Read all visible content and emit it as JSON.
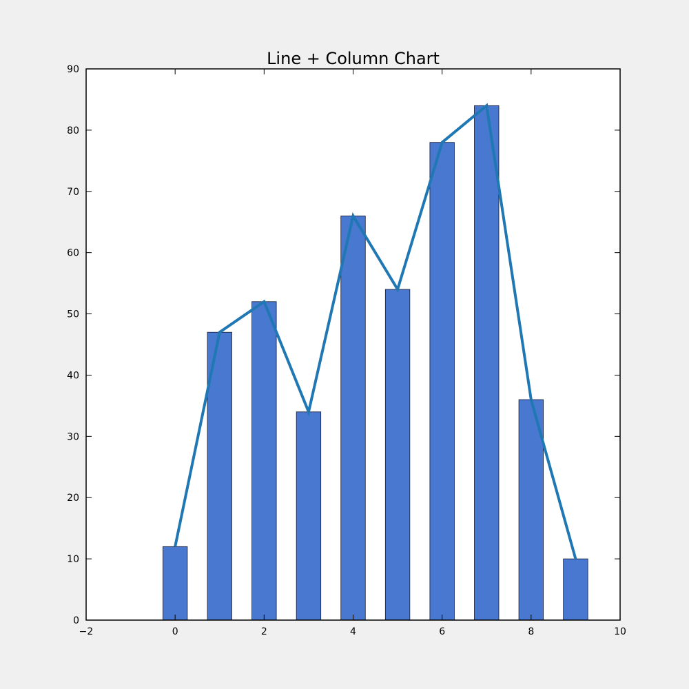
{
  "chart_data": {
    "type": "bar",
    "title": "Line + Column Chart",
    "xlabel": "",
    "ylabel": "",
    "x": [
      0,
      1,
      2,
      3,
      4,
      5,
      6,
      7,
      8,
      9
    ],
    "xlim": [
      -2,
      10
    ],
    "ylim": [
      0,
      90
    ],
    "x_ticks": [
      -2,
      0,
      2,
      4,
      6,
      8,
      10
    ],
    "x_tick_labels": [
      "−2",
      "0",
      "2",
      "4",
      "6",
      "8",
      "10"
    ],
    "y_ticks": [
      0,
      10,
      20,
      30,
      40,
      50,
      60,
      70,
      80,
      90
    ],
    "y_tick_labels": [
      "0",
      "10",
      "20",
      "30",
      "40",
      "50",
      "60",
      "70",
      "80",
      "90"
    ],
    "grid": false,
    "legend": "none",
    "bar_width": 0.55,
    "series": [
      {
        "type": "bar",
        "values": [
          12,
          47,
          52,
          34,
          66,
          54,
          78,
          84,
          36,
          10
        ],
        "color": "#4878cf"
      },
      {
        "type": "line",
        "values": [
          12,
          47,
          52,
          34,
          66,
          54,
          78,
          84,
          36,
          10
        ],
        "color": "#1f77b4"
      }
    ]
  }
}
